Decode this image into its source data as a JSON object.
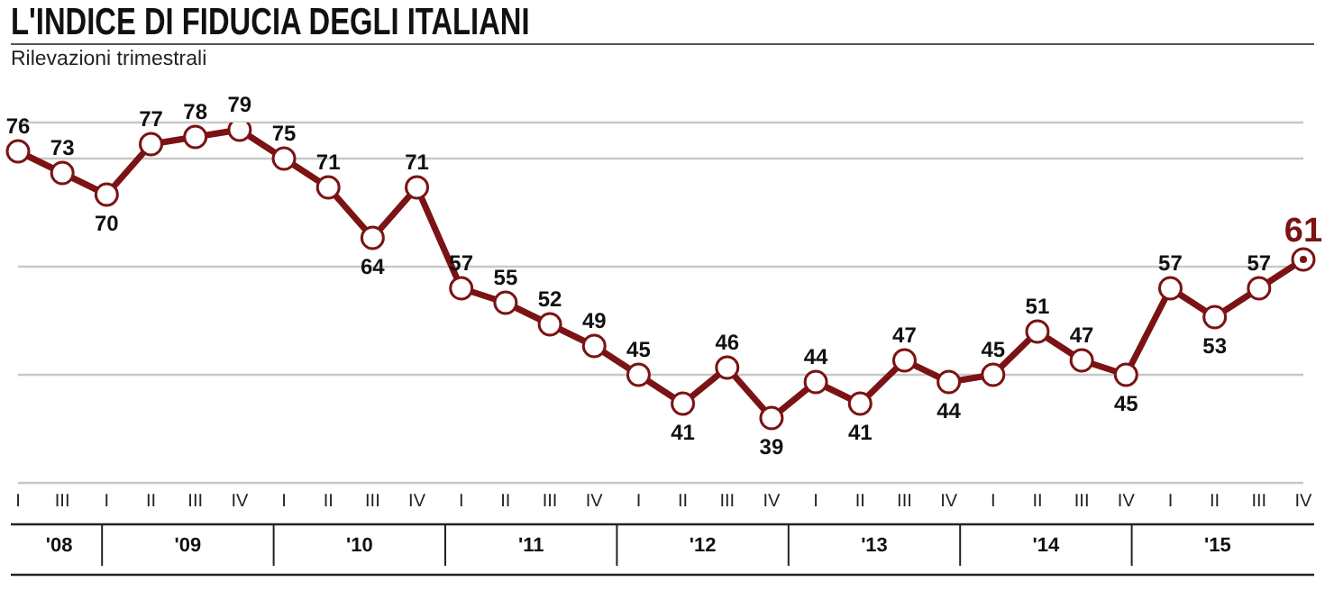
{
  "chart_data": {
    "type": "line",
    "title": "L'INDICE DI FIDUCIA DEGLI ITALIANI",
    "subtitle": "Rilevazioni trimestrali",
    "categories": [
      "I",
      "III",
      "I",
      "II",
      "III",
      "IV",
      "I",
      "II",
      "III",
      "IV",
      "I",
      "II",
      "III",
      "IV",
      "I",
      "II",
      "III",
      "IV",
      "I",
      "II",
      "III",
      "IV",
      "I",
      "II",
      "III",
      "IV",
      "I",
      "II",
      "III",
      "IV"
    ],
    "series": [
      {
        "color": "#7b1315",
        "values": [
          76,
          73,
          70,
          77,
          78,
          79,
          75,
          71,
          64,
          71,
          57,
          55,
          52,
          49,
          45,
          41,
          46,
          39,
          44,
          41,
          47,
          44,
          45,
          51,
          47,
          45,
          57,
          53,
          57,
          61
        ]
      }
    ],
    "annotations": [
      "'08",
      "'09",
      "'10",
      "'11",
      "'12",
      "'13",
      "'14",
      "'15"
    ],
    "tick_labels": "x",
    "grid": "y",
    "marker": "circle",
    "line_style": "solid",
    "data_labels": true
  }
}
